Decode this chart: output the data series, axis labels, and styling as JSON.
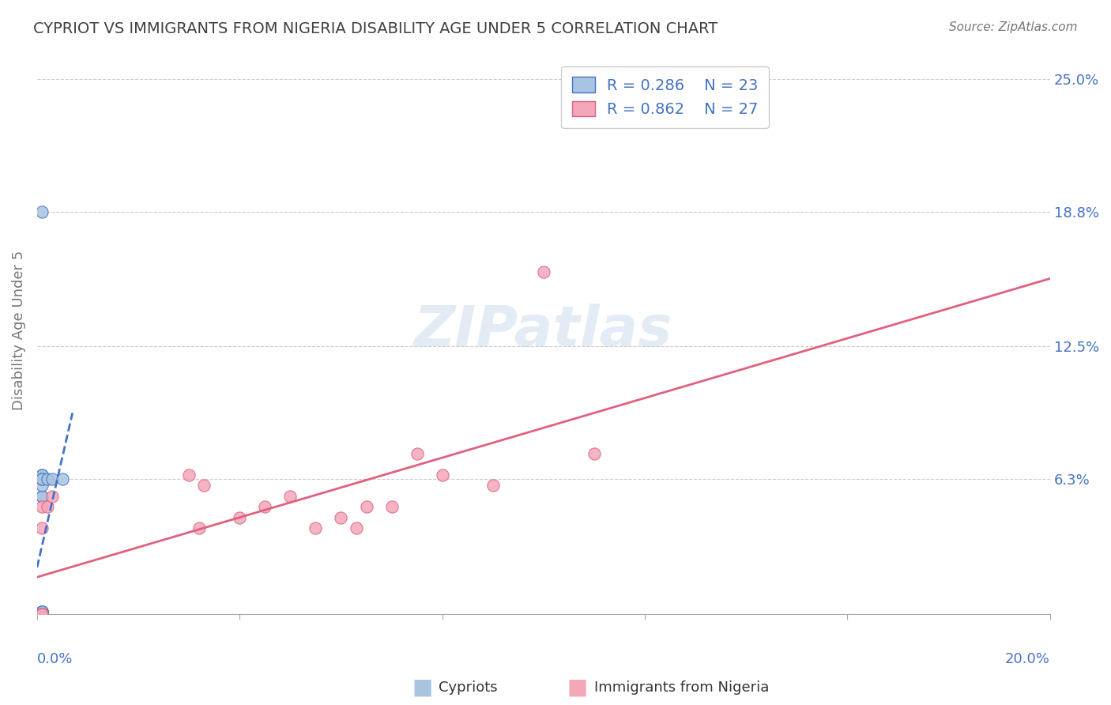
{
  "title": "CYPRIOT VS IMMIGRANTS FROM NIGERIA DISABILITY AGE UNDER 5 CORRELATION CHART",
  "source": "Source: ZipAtlas.com",
  "ylabel": "Disability Age Under 5",
  "yticks": [
    0.0,
    0.063,
    0.125,
    0.188,
    0.25
  ],
  "ytick_labels": [
    "",
    "6.3%",
    "12.5%",
    "18.8%",
    "25.0%"
  ],
  "xlim": [
    0.0,
    0.2
  ],
  "ylim": [
    0.0,
    0.265
  ],
  "cypriot_x": [
    0.001,
    0.001,
    0.001,
    0.001,
    0.001,
    0.001,
    0.001,
    0.001,
    0.001,
    0.001,
    0.001,
    0.001,
    0.001,
    0.001,
    0.001,
    0.001,
    0.001,
    0.001,
    0.001,
    0.001,
    0.002,
    0.003,
    0.005
  ],
  "cypriot_y": [
    0.188,
    0.001,
    0.001,
    0.001,
    0.001,
    0.001,
    0.001,
    0.055,
    0.055,
    0.06,
    0.065,
    0.065,
    0.063,
    0.063,
    0.0,
    0.0,
    0.0,
    0.0,
    0.0,
    0.0,
    0.063,
    0.063,
    0.063
  ],
  "nigeria_x": [
    0.001,
    0.001,
    0.001,
    0.001,
    0.001,
    0.001,
    0.001,
    0.001,
    0.001,
    0.002,
    0.003,
    0.03,
    0.032,
    0.033,
    0.04,
    0.045,
    0.05,
    0.055,
    0.06,
    0.063,
    0.065,
    0.07,
    0.075,
    0.08,
    0.09,
    0.1,
    0.11
  ],
  "nigeria_y": [
    0.0,
    0.0,
    0.0,
    0.0,
    0.0,
    0.0,
    0.0,
    0.04,
    0.05,
    0.05,
    0.055,
    0.065,
    0.04,
    0.06,
    0.045,
    0.05,
    0.055,
    0.04,
    0.045,
    0.04,
    0.05,
    0.05,
    0.075,
    0.065,
    0.06,
    0.16,
    0.075
  ],
  "cypriot_color": "#a8c4e0",
  "nigeria_color": "#f4a7b9",
  "cypriot_line_color": "#4472c4",
  "nigeria_line_color": "#e06080",
  "legend_r1": "R = 0.286",
  "legend_n1": "N = 23",
  "legend_r2": "R = 0.862",
  "legend_n2": "N = 27",
  "watermark": "ZIPatlas",
  "title_color": "#404040",
  "axis_label_color": "#4472c4",
  "legend_color": "#4472c4"
}
